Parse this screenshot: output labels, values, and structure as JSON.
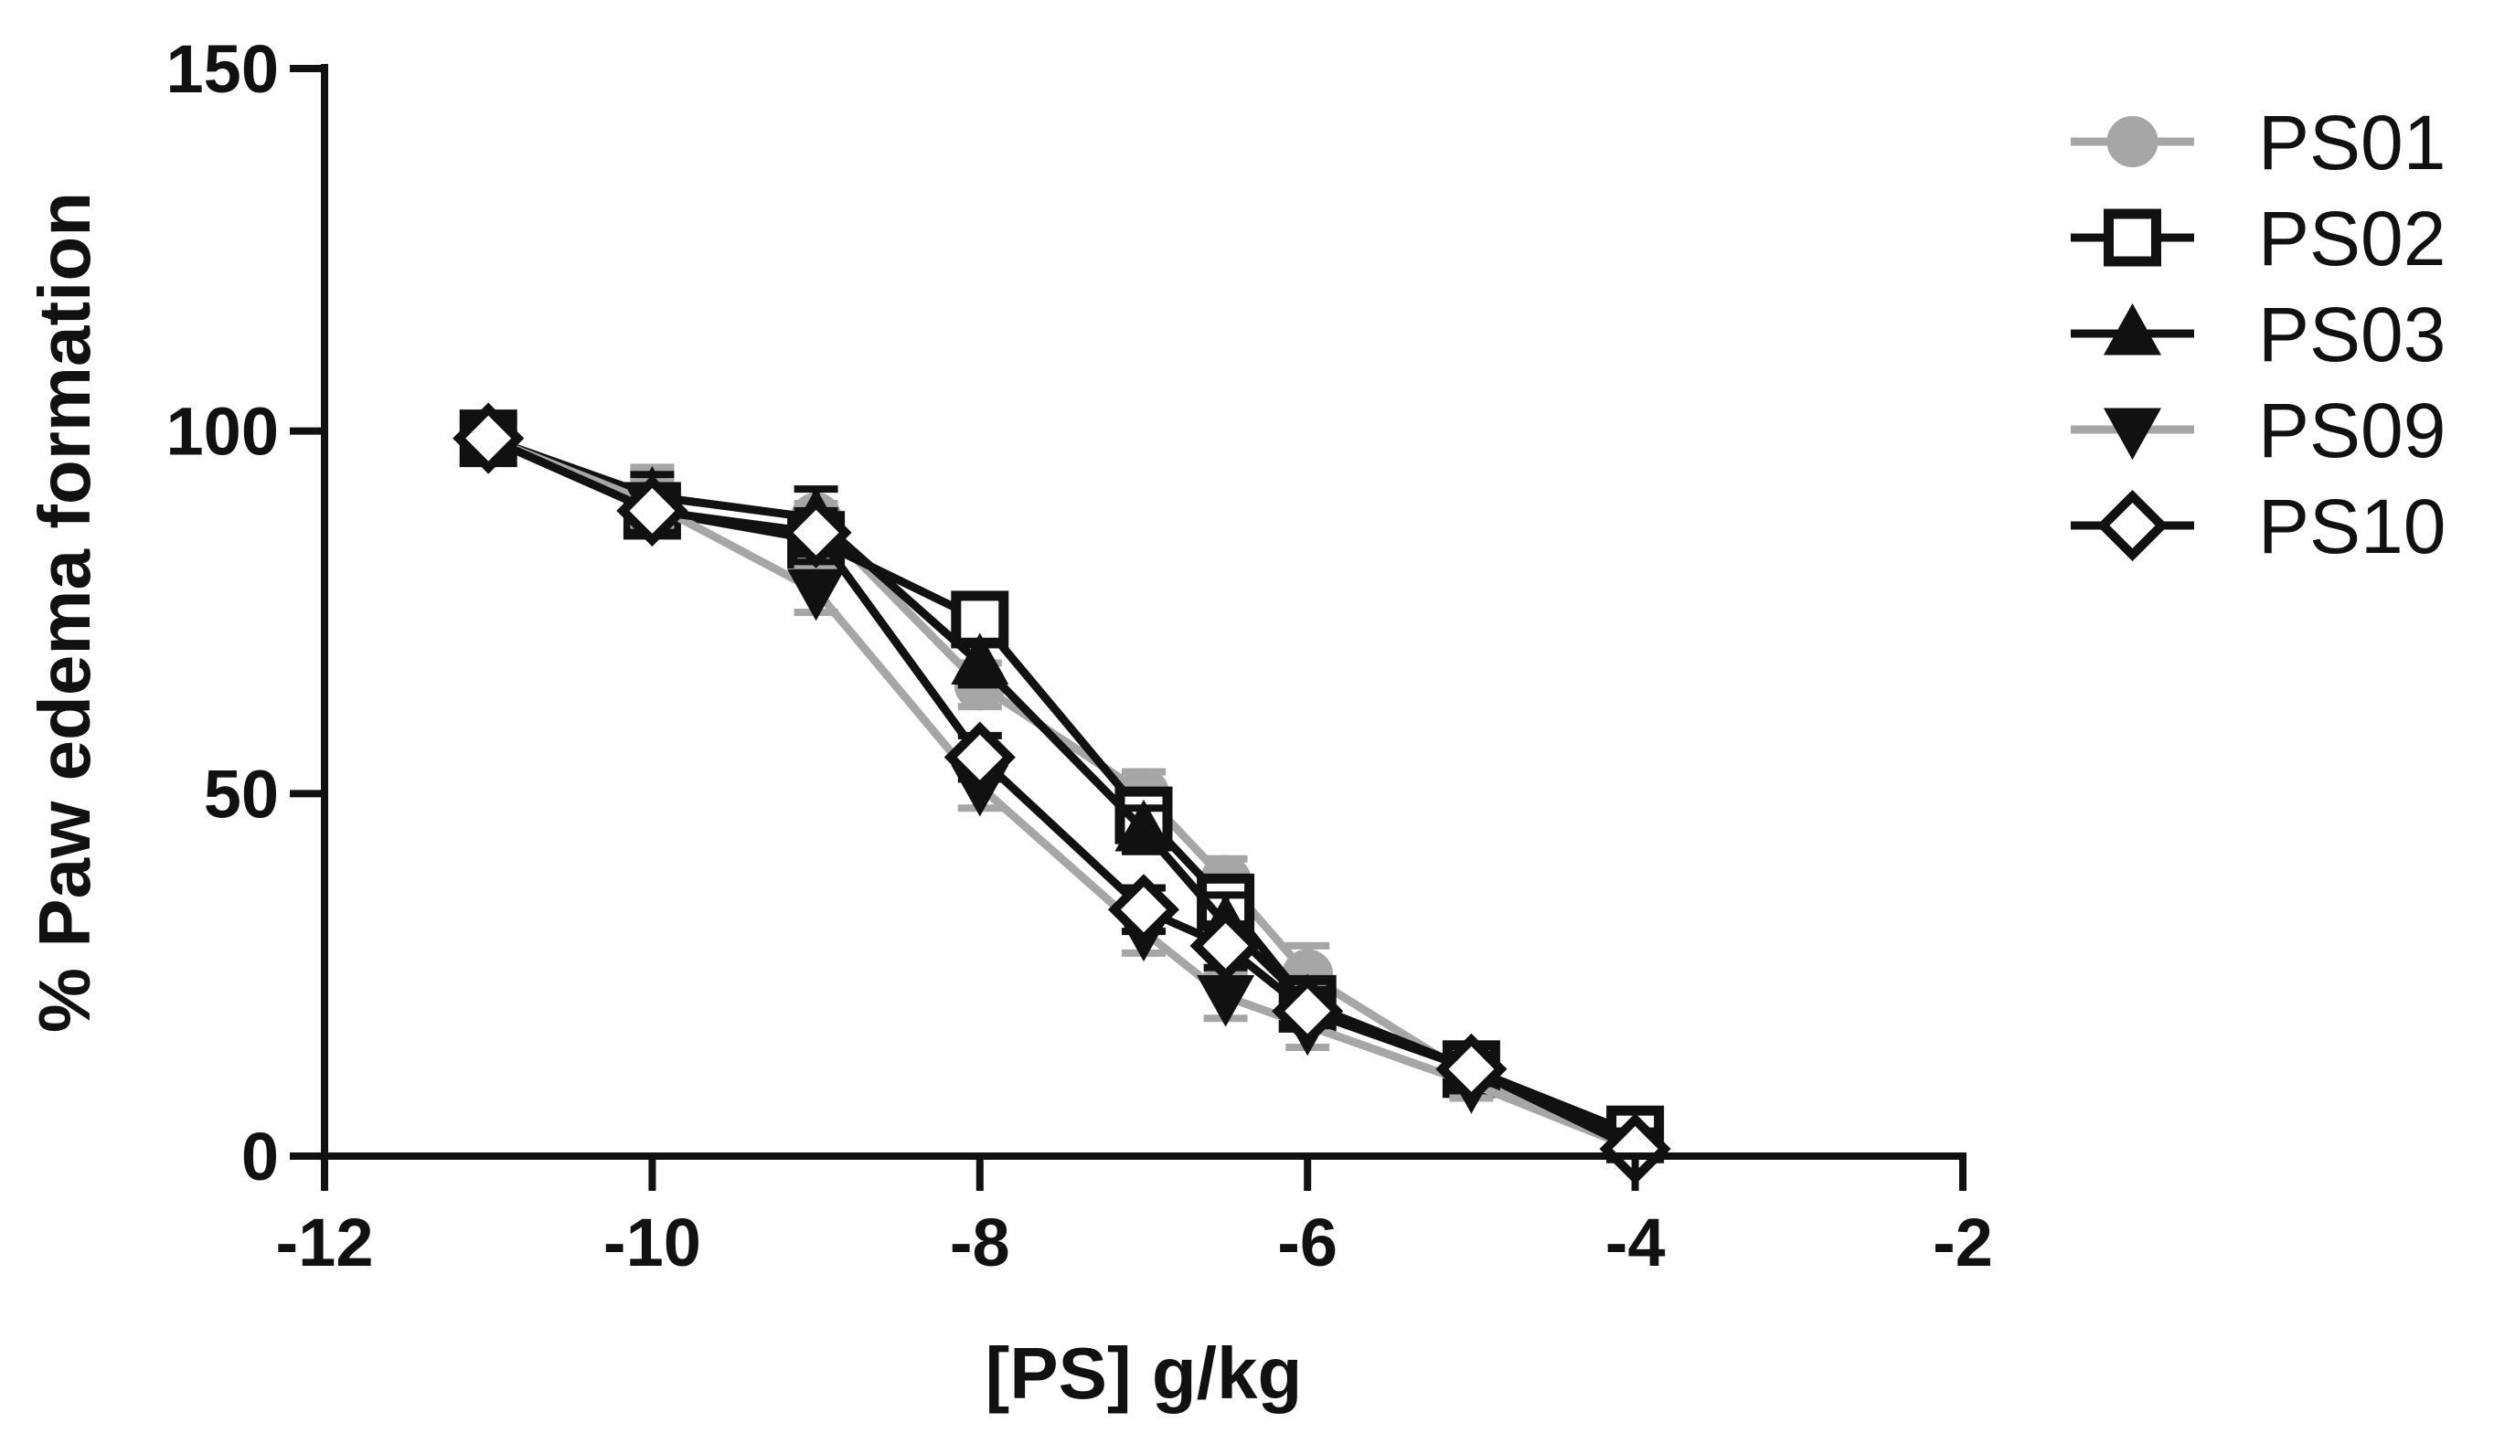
{
  "chart_data": {
    "type": "line",
    "title": "",
    "xlabel": "[PS] g/kg",
    "ylabel": "% Paw edema formation",
    "xlim": [
      -12,
      -2
    ],
    "ylim": [
      0,
      150
    ],
    "xticks": [
      -12,
      -10,
      -8,
      -6,
      -4,
      -2
    ],
    "yticks": [
      0,
      50,
      100,
      150
    ],
    "xtick_labels": [
      "-12",
      "-10",
      "-8",
      "-6",
      "-4",
      "-2"
    ],
    "ytick_labels": [
      "0",
      "50",
      "100",
      "150"
    ],
    "grid": false,
    "legend_position": "right",
    "x": [
      -11,
      -10,
      -9,
      -8,
      -7,
      -6.5,
      -6,
      -5,
      -4
    ],
    "series": [
      {
        "name": "PS01",
        "color": "#a6a6a6",
        "marker": "circle",
        "values": [
          99,
          91,
          88,
          65,
          50,
          38,
          25,
          11,
          2
        ],
        "errors": [
          1,
          4,
          2,
          3,
          3,
          3,
          4,
          2,
          1
        ]
      },
      {
        "name": "PS02",
        "color": "#111111",
        "marker": "square-open",
        "values": [
          99,
          89,
          85,
          74,
          47,
          35,
          21,
          12,
          3
        ],
        "errors": [
          1,
          3,
          3,
          2,
          3,
          3,
          2,
          2,
          1
        ]
      },
      {
        "name": "PS03",
        "color": "#111111",
        "marker": "triangle-up",
        "values": [
          99,
          91,
          88,
          68,
          45,
          32,
          21,
          12,
          2
        ],
        "errors": [
          1,
          3,
          4,
          3,
          3,
          4,
          2,
          2,
          1
        ]
      },
      {
        "name": "PS09",
        "color": "#a6a6a6",
        "marker": "triangle-down",
        "values": [
          99,
          90,
          78,
          51,
          31,
          22,
          18,
          10,
          1
        ],
        "errors": [
          1,
          3,
          3,
          3,
          3,
          3,
          3,
          2,
          1
        ]
      },
      {
        "name": "PS10",
        "color": "#111111",
        "marker": "diamond-open",
        "values": [
          99,
          89,
          86,
          55,
          34,
          29,
          20,
          12,
          1
        ],
        "errors": [
          1,
          3,
          3,
          3,
          3,
          3,
          2,
          2,
          1
        ]
      }
    ]
  }
}
